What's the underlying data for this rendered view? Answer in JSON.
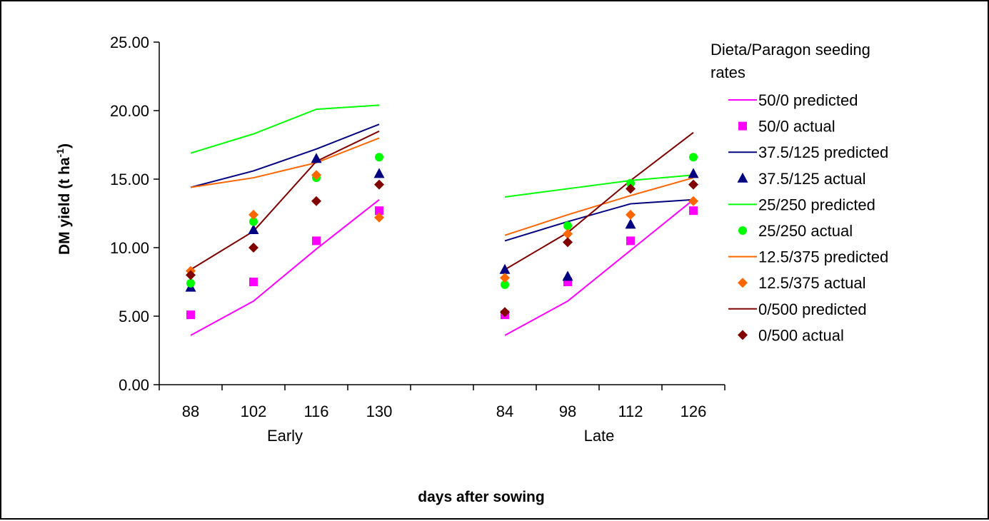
{
  "chart_data": {
    "type": "line",
    "title": "",
    "ylabel": "DM yield (t ha",
    "ylabel_sup": "-1",
    "ylabel_close": ")",
    "xlabel": "days after sowing",
    "ylim": [
      0,
      25
    ],
    "yticks": [
      "0.00",
      "5.00",
      "10.00",
      "15.00",
      "20.00",
      "25.00"
    ],
    "groups": [
      {
        "name": "Early",
        "categories": [
          "88",
          "102",
          "116",
          "130"
        ]
      },
      {
        "name": "Late",
        "categories": [
          "84",
          "98",
          "112",
          "126"
        ]
      }
    ],
    "legend_title": "Dieta/Paragon seeding rates",
    "legend_position": "right",
    "series": [
      {
        "name": "50/0 predicted",
        "kind": "line",
        "color": "#ff00ff",
        "early": [
          3.6,
          6.1,
          9.9,
          13.5
        ],
        "late": [
          3.6,
          6.1,
          9.8,
          13.5
        ]
      },
      {
        "name": "50/0 actual",
        "kind": "marker",
        "marker": "square",
        "color": "#ff00ff",
        "early": [
          5.1,
          7.5,
          10.5,
          12.7
        ],
        "late": [
          5.1,
          7.5,
          10.5,
          12.7
        ]
      },
      {
        "name": "37.5/125 predicted",
        "kind": "line",
        "color": "#000080",
        "early": [
          14.4,
          15.6,
          17.2,
          19.0
        ],
        "late": [
          10.5,
          11.9,
          13.2,
          13.5
        ]
      },
      {
        "name": "37.5/125 actual",
        "kind": "marker",
        "marker": "triangle",
        "color": "#000080",
        "early": [
          7.1,
          11.3,
          16.5,
          15.4
        ],
        "late": [
          8.4,
          7.9,
          11.7,
          15.4
        ]
      },
      {
        "name": "25/250 predicted",
        "kind": "line",
        "color": "#00ff00",
        "early": [
          16.9,
          18.3,
          20.1,
          20.4
        ],
        "late": [
          13.7,
          14.3,
          14.9,
          15.3
        ]
      },
      {
        "name": "25/250 actual",
        "kind": "marker",
        "marker": "circle",
        "color": "#00ff00",
        "early": [
          7.4,
          11.9,
          15.1,
          16.6
        ],
        "late": [
          7.3,
          11.6,
          14.7,
          16.6
        ]
      },
      {
        "name": "12.5/375  predicted",
        "kind": "line",
        "color": "#ff6600",
        "early": [
          14.4,
          15.1,
          16.2,
          18.0
        ],
        "late": [
          10.9,
          12.4,
          13.8,
          15.1
        ]
      },
      {
        "name": "12.5/375 actual",
        "kind": "marker",
        "marker": "diamond",
        "color": "#ff6600",
        "early": [
          8.3,
          12.4,
          15.3,
          12.2
        ],
        "late": [
          7.8,
          11.0,
          12.4,
          13.4
        ]
      },
      {
        "name": "0/500 predicted",
        "kind": "line",
        "color": "#800000",
        "early": [
          8.4,
          11.2,
          16.3,
          18.5
        ],
        "late": [
          8.4,
          11.1,
          14.9,
          18.4
        ]
      },
      {
        "name": "0/500 actual",
        "kind": "marker",
        "marker": "diamond",
        "color": "#800000",
        "early": [
          8.0,
          10.0,
          13.4,
          14.6
        ],
        "late": [
          5.3,
          10.4,
          14.3,
          14.6
        ]
      }
    ]
  }
}
